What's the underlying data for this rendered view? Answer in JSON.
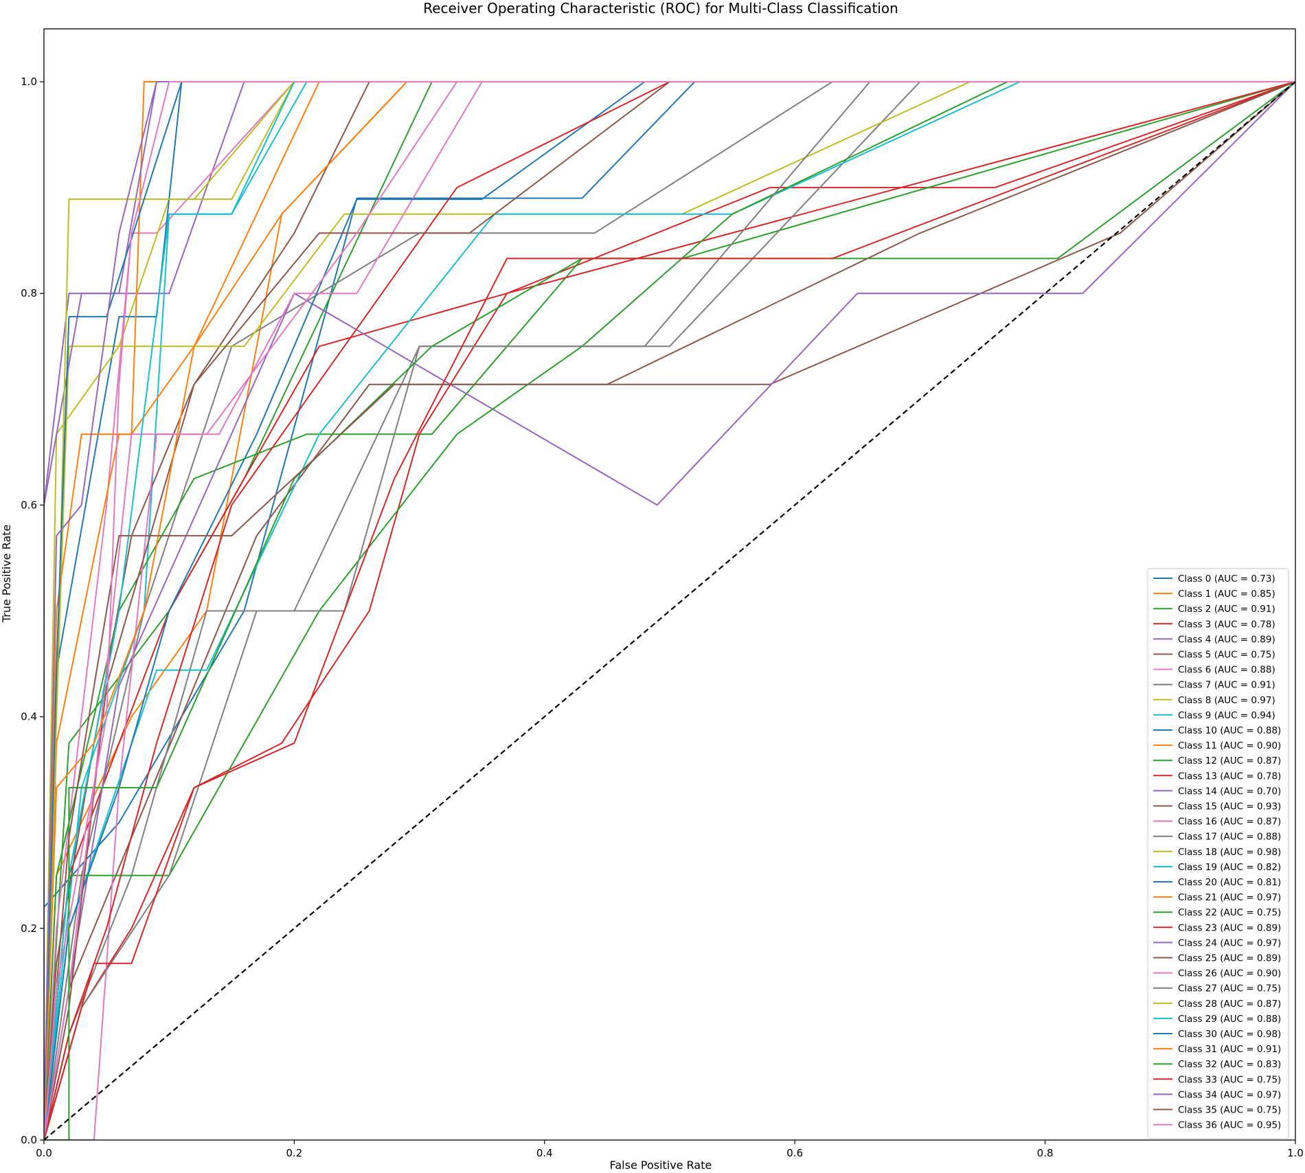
{
  "chart_data": {
    "type": "line",
    "title": "Receiver Operating Characteristic (ROC) for Multi-Class Classification",
    "xlabel": "False Positive Rate",
    "ylabel": "True Positive Rate",
    "xlim": [
      0.0,
      1.0
    ],
    "ylim": [
      0.0,
      1.05
    ],
    "xticks": [
      "0.0",
      "0.2",
      "0.4",
      "0.6",
      "0.8",
      "1.0"
    ],
    "yticks": [
      "0.0",
      "0.2",
      "0.4",
      "0.6",
      "0.8",
      "1.0"
    ],
    "legend_position": "lower right",
    "grid": false,
    "diagonal": {
      "x": [
        0,
        1
      ],
      "y": [
        0,
        1
      ],
      "color": "#000000",
      "style": "dashed"
    },
    "palette": [
      "#1f77b4",
      "#ff7f0e",
      "#2ca02c",
      "#d62728",
      "#9467bd",
      "#8c564b",
      "#e377c2",
      "#7f7f7f",
      "#bcbd22",
      "#17becf"
    ],
    "series": [
      {
        "name": "Class 0 (AUC = 0.73)",
        "x": [
          0,
          0.0,
          0.06,
          0.16,
          0.25,
          0.43,
          0.52,
          1.0
        ],
        "y": [
          0,
          0.22,
          0.3,
          0.5,
          0.89,
          0.89,
          1.0,
          1.0
        ]
      },
      {
        "name": "Class 1 (AUC = 0.85)",
        "x": [
          0,
          0.01,
          0.07,
          0.13,
          0.19,
          0.29,
          1.0
        ],
        "y": [
          0,
          0.25,
          0.4,
          0.5,
          0.875,
          1.0,
          1.0
        ]
      },
      {
        "name": "Class 2 (AUC = 0.91)",
        "x": [
          0,
          0.02,
          0.1,
          0.16,
          0.31,
          1.0
        ],
        "y": [
          0,
          0.375,
          0.5,
          0.625,
          1.0,
          1.0
        ]
      },
      {
        "name": "Class 3 (AUC = 0.78)",
        "x": [
          0,
          0.02,
          0.06,
          0.1,
          0.22,
          0.37,
          0.58,
          0.76,
          1.0
        ],
        "y": [
          0,
          0.25,
          0.375,
          0.5,
          0.75,
          0.8,
          0.9,
          0.9,
          1.0
        ]
      },
      {
        "name": "Class 4 (AUC = 0.89)",
        "x": [
          0,
          0.0,
          0.02,
          0.1,
          0.16,
          1.0
        ],
        "y": [
          0,
          0.6,
          0.8,
          0.8,
          1.0,
          1.0
        ]
      },
      {
        "name": "Class 5 (AUC = 0.75)",
        "x": [
          0,
          0.02,
          0.07,
          0.17,
          0.26,
          0.36,
          0.47,
          0.58,
          0.86,
          1.0
        ],
        "y": [
          0,
          0.143,
          0.286,
          0.571,
          0.714,
          0.714,
          0.714,
          0.714,
          0.857,
          1.0
        ]
      },
      {
        "name": "Class 6 (AUC = 0.88)",
        "x": [
          0,
          0.01,
          0.03,
          0.05,
          0.07,
          0.09,
          0.2,
          1.0
        ],
        "y": [
          0,
          0.2,
          0.4,
          0.6,
          0.857,
          0.857,
          1.0,
          1.0
        ]
      },
      {
        "name": "Class 7 (AUC = 0.91)",
        "x": [
          0,
          0.03,
          0.08,
          0.15,
          0.3,
          0.44,
          0.63,
          1.0
        ],
        "y": [
          0,
          0.25,
          0.5,
          0.75,
          0.857,
          0.857,
          1.0,
          1.0
        ]
      },
      {
        "name": "Class 8 (AUC = 0.97)",
        "x": [
          0,
          0.01,
          0.02,
          0.06,
          0.1,
          0.15,
          0.2,
          1.0
        ],
        "y": [
          0,
          0.4,
          0.75,
          0.75,
          0.889,
          0.889,
          1.0,
          1.0
        ]
      },
      {
        "name": "Class 9 (AUC = 0.94)",
        "x": [
          0,
          0.03,
          0.08,
          0.1,
          0.15,
          0.21,
          1.0
        ],
        "y": [
          0,
          0.333,
          0.5,
          0.875,
          0.875,
          1.0,
          1.0
        ]
      },
      {
        "name": "Class 10 (AUC = 0.88)",
        "x": [
          0,
          0.01,
          0.06,
          0.09,
          0.11,
          1.0
        ],
        "y": [
          0,
          0.444,
          0.778,
          0.778,
          1.0,
          1.0
        ]
      },
      {
        "name": "Class 11 (AUC = 0.90)",
        "x": [
          0,
          0.01,
          0.06,
          0.07,
          0.08,
          0.15,
          1.0
        ],
        "y": [
          0,
          0.375,
          0.667,
          0.667,
          1.0,
          1.0,
          1.0
        ]
      },
      {
        "name": "Class 12 (AUC = 0.87)",
        "x": [
          0,
          0.01,
          0.06,
          0.12,
          0.21,
          0.31,
          0.43,
          0.51,
          1.0
        ],
        "y": [
          0,
          0.25,
          0.5,
          0.625,
          0.667,
          0.667,
          0.833,
          0.833,
          1.0
        ]
      },
      {
        "name": "Class 13 (AUC = 0.78)",
        "x": [
          0,
          0.03,
          0.07,
          0.12,
          0.19,
          0.26,
          0.3,
          0.37,
          1.0
        ],
        "y": [
          0,
          0.125,
          0.2,
          0.333,
          0.375,
          0.5,
          0.667,
          0.8,
          1.0
        ]
      },
      {
        "name": "Class 14 (AUC = 0.70)",
        "x": [
          0,
          0.02,
          0.06,
          0.2,
          0.49,
          0.65,
          0.83,
          1.0
        ],
        "y": [
          0,
          0.143,
          0.429,
          0.8,
          0.6,
          0.8,
          0.8,
          1.0
        ]
      },
      {
        "name": "Class 15 (AUC = 0.93)",
        "x": [
          0,
          0.01,
          0.04,
          0.07,
          0.12,
          0.2,
          0.26,
          1.0
        ],
        "y": [
          0,
          0.167,
          0.375,
          0.571,
          0.714,
          0.857,
          1.0,
          1.0
        ]
      },
      {
        "name": "Class 16 (AUC = 0.87)",
        "x": [
          0,
          0.04,
          0.06,
          0.09,
          0.14,
          0.2,
          0.25,
          0.35,
          1.0
        ],
        "y": [
          0,
          0.0,
          0.333,
          0.667,
          0.667,
          0.8,
          0.8,
          1.0,
          1.0
        ]
      },
      {
        "name": "Class 17 (AUC = 0.88)",
        "x": [
          0,
          0.02,
          0.07,
          0.13,
          0.2,
          0.3,
          0.5,
          0.7,
          1.0
        ],
        "y": [
          0,
          0.1,
          0.25,
          0.5,
          0.5,
          0.75,
          0.75,
          1.0,
          1.0
        ]
      },
      {
        "name": "Class 18 (AUC = 0.98)",
        "x": [
          0,
          0.01,
          0.06,
          0.11,
          0.16,
          0.24,
          0.51,
          0.74,
          1.0
        ],
        "y": [
          0,
          0.667,
          0.75,
          0.75,
          0.75,
          0.875,
          0.875,
          1.0,
          1.0
        ]
      },
      {
        "name": "Class 19 (AUC = 0.82)",
        "x": [
          0,
          0.02,
          0.09,
          0.13,
          0.22,
          0.36,
          0.55,
          0.78,
          1.0
        ],
        "y": [
          0,
          0.2,
          0.444,
          0.444,
          0.667,
          0.875,
          0.875,
          1.0,
          1.0
        ]
      },
      {
        "name": "Class 20 (AUC = 0.81)",
        "x": [
          0,
          0.02,
          0.06,
          0.1,
          0.17,
          0.25,
          0.35,
          0.48,
          1.0
        ],
        "y": [
          0,
          0.2,
          0.333,
          0.5,
          0.667,
          0.889,
          0.889,
          1.0,
          1.0
        ]
      },
      {
        "name": "Class 21 (AUC = 0.97)",
        "x": [
          0,
          0.01,
          0.03,
          0.07,
          0.12,
          0.22,
          1.0
        ],
        "y": [
          0,
          0.5,
          0.667,
          0.667,
          0.75,
          1.0,
          1.0
        ]
      },
      {
        "name": "Class 22 (AUC = 0.75)",
        "x": [
          0,
          0.02,
          0.1,
          0.22,
          0.33,
          0.43,
          0.55,
          0.77,
          1.0
        ],
        "y": [
          0,
          0.25,
          0.25,
          0.5,
          0.667,
          0.75,
          0.875,
          1.0,
          1.0
        ]
      },
      {
        "name": "Class 23 (AUC = 0.89)",
        "x": [
          0,
          0.02,
          0.05,
          0.09,
          0.15,
          0.24,
          0.33,
          0.5,
          1.0
        ],
        "y": [
          0,
          0.1,
          0.2,
          0.375,
          0.6,
          0.75,
          0.9,
          1.0,
          1.0
        ]
      },
      {
        "name": "Class 24 (AUC = 0.97)",
        "x": [
          0,
          0.0,
          0.03,
          0.06,
          0.09,
          1.0
        ],
        "y": [
          0,
          0.6,
          0.8,
          0.8,
          1.0,
          1.0
        ]
      },
      {
        "name": "Class 25 (AUC = 0.89)",
        "x": [
          0,
          0.02,
          0.05,
          0.12,
          0.22,
          0.34,
          0.5,
          1.0
        ],
        "y": [
          0,
          0.125,
          0.429,
          0.714,
          0.857,
          0.857,
          1.0,
          1.0
        ]
      },
      {
        "name": "Class 26 (AUC = 0.90)",
        "x": [
          0,
          0.02,
          0.04,
          0.07,
          0.13,
          0.25,
          0.33,
          1.0
        ],
        "y": [
          0,
          0.143,
          0.333,
          0.667,
          0.667,
          0.857,
          1.0,
          1.0
        ]
      },
      {
        "name": "Class 27 (AUC = 0.75)",
        "x": [
          0,
          0.03,
          0.1,
          0.17,
          0.24,
          0.3,
          0.48,
          0.66,
          1.0
        ],
        "y": [
          0,
          0.125,
          0.25,
          0.5,
          0.5,
          0.75,
          0.75,
          1.0,
          1.0
        ]
      },
      {
        "name": "Class 28 (AUC = 0.87)",
        "x": [
          0,
          0.01,
          0.02,
          0.06,
          0.12,
          0.2,
          0.29,
          1.0
        ],
        "y": [
          0,
          0.4,
          0.889,
          0.889,
          0.889,
          1.0,
          1.0,
          1.0
        ]
      },
      {
        "name": "Class 29 (AUC = 0.88)",
        "x": [
          0,
          0.02,
          0.06,
          0.1,
          0.15,
          0.2,
          1.0
        ],
        "y": [
          0,
          0.25,
          0.5,
          0.875,
          0.875,
          1.0,
          1.0
        ]
      },
      {
        "name": "Class 30 (AUC = 0.98)",
        "x": [
          0,
          0.01,
          0.02,
          0.05,
          0.08,
          0.11,
          1.0
        ],
        "y": [
          0,
          0.444,
          0.778,
          0.778,
          0.889,
          1.0,
          1.0
        ]
      },
      {
        "name": "Class 31 (AUC = 0.91)",
        "x": [
          0,
          0.01,
          0.04,
          0.08,
          0.12,
          0.19,
          0.29,
          1.0
        ],
        "y": [
          0,
          0.333,
          0.375,
          0.5,
          0.75,
          0.875,
          1.0,
          1.0
        ]
      },
      {
        "name": "Class 32 (AUC = 0.83)",
        "x": [
          0,
          0.02,
          0.02,
          0.09,
          0.2,
          0.31,
          0.43,
          0.81,
          1.0
        ],
        "y": [
          0,
          0.0,
          0.333,
          0.333,
          0.625,
          0.75,
          0.833,
          0.833,
          1.0
        ]
      },
      {
        "name": "Class 33 (AUC = 0.75)",
        "x": [
          0,
          0.04,
          0.07,
          0.12,
          0.2,
          0.28,
          0.37,
          0.63,
          1.0
        ],
        "y": [
          0,
          0.167,
          0.167,
          0.333,
          0.375,
          0.625,
          0.833,
          0.833,
          1.0
        ]
      },
      {
        "name": "Class 34 (AUC = 0.97)",
        "x": [
          0,
          0.01,
          0.03,
          0.06,
          0.09,
          1.0
        ],
        "y": [
          0,
          0.571,
          0.6,
          0.857,
          1.0,
          1.0
        ]
      },
      {
        "name": "Class 35 (AUC = 0.75)",
        "x": [
          0,
          0.02,
          0.06,
          0.15,
          0.28,
          0.45,
          0.7,
          1.0
        ],
        "y": [
          0,
          0.286,
          0.571,
          0.571,
          0.714,
          0.714,
          0.857,
          1.0
        ]
      },
      {
        "name": "Class 36 (AUC = 0.95)",
        "x": [
          0,
          0.01,
          0.05,
          0.06,
          0.07,
          0.1,
          1.0
        ],
        "y": [
          0,
          0.143,
          0.4,
          0.714,
          0.857,
          1.0,
          1.0
        ]
      }
    ]
  }
}
